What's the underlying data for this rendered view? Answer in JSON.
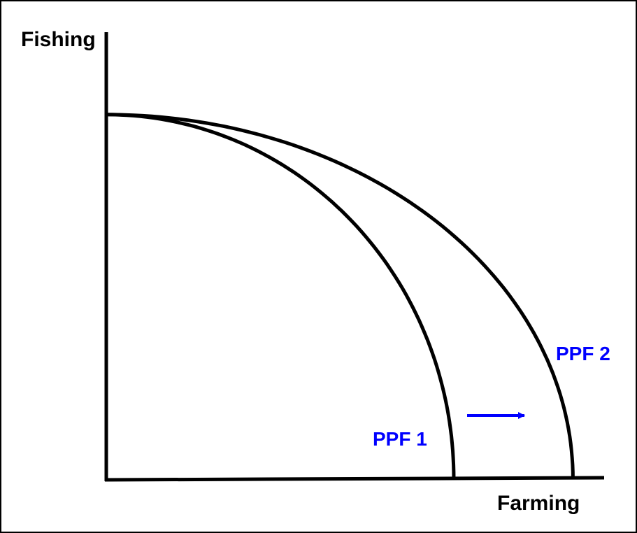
{
  "chart_data": {
    "type": "line",
    "title": "",
    "xlabel": "Farming",
    "ylabel": "Fishing",
    "xlim": [
      0,
      100
    ],
    "ylim": [
      0,
      100
    ],
    "grid": false,
    "series": [
      {
        "name": "PPF 1",
        "x_intercept": 70,
        "y_intercept": 75
      },
      {
        "name": "PPF 2",
        "x_intercept": 94,
        "y_intercept": 75
      }
    ],
    "annotations": [
      {
        "type": "arrow",
        "direction": "right",
        "text": ""
      }
    ],
    "colors": {
      "curve": "#000000",
      "label": "#0000ff",
      "arrow": "#0000ff"
    }
  }
}
